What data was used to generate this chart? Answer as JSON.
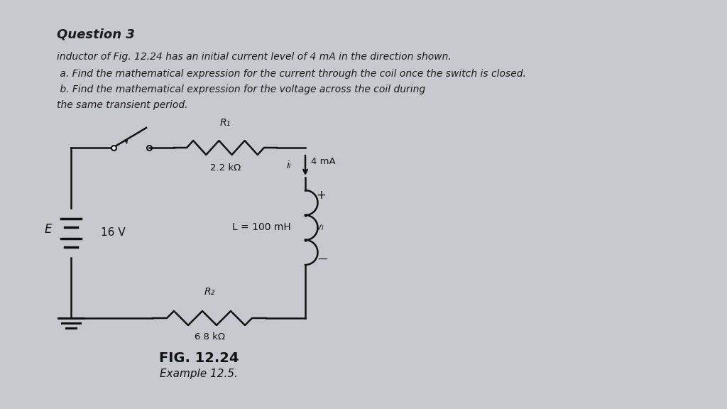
{
  "bg_color": "#c8c8d0",
  "paper_color": "#dcdce4",
  "title": "Question 3",
  "line1": "inductor of Fig. 12.24 has an initial current level of 4 mA in the direction shown.",
  "line2": " a. Find the mathematical expression for the current through the coil once the switch is closed.",
  "line3": " b. Find the mathematical expression for the voltage across the coil during",
  "line4": "the same transient period.",
  "fig_label": "FIG. 12.24",
  "fig_sublabel": "Example 12.5.",
  "E_label": "E",
  "V_label": "16 V",
  "R1_label": "R₁",
  "R1_val": "2.2 kΩ",
  "R2_label": "R₂",
  "R2_val": "6.8 kΩ",
  "L_val": "L = 100 mH",
  "iL_label": "iₗ",
  "vL_label": "vₗ",
  "current_label": "4 mA",
  "text_color": "#1a1a1a",
  "circuit_color": "#111111"
}
